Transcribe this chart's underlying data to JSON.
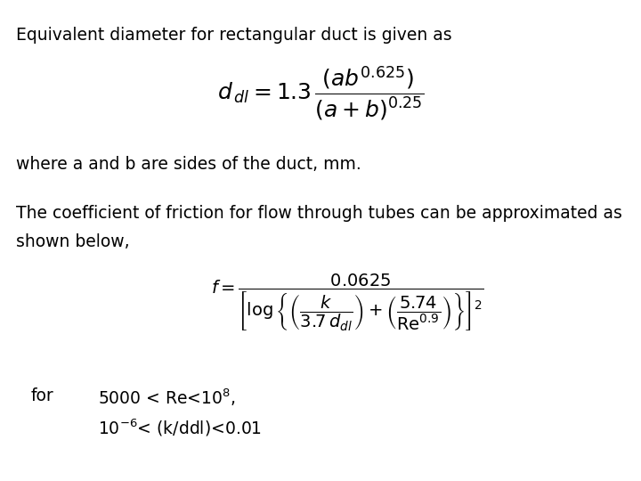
{
  "bg_color": "#ffffff",
  "text_color": "#000000",
  "title_text": "Equivalent diameter for rectangular duct is given as",
  "formula1": "$d_{\\,dl} = 1.3\\,\\dfrac{\\left(ab^{0.625}\\right)}{\\left(a+b\\right)^{0.25}}$",
  "where_text": "where a and b are sides of the duct, mm.",
  "body_line1": "The coefficient of friction for flow through tubes can be approximated as",
  "body_line2": "shown below,",
  "formula2": "$f = \\dfrac{0.0625}{\\left[\\log\\left\\{\\left(\\dfrac{k}{3.7\\,d_{dl}}\\right)+\\left(\\dfrac{5.74}{\\mathrm{Re}^{0.9}}\\right)\\right\\}\\right]^{2}}$",
  "for_label": "for",
  "condition1": "5000 < Re<10$^{8}$,",
  "condition2": "10$^{-6}$< (k/ddl)<0.01",
  "figsize": [
    7.2,
    5.4
  ],
  "dpi": 100
}
